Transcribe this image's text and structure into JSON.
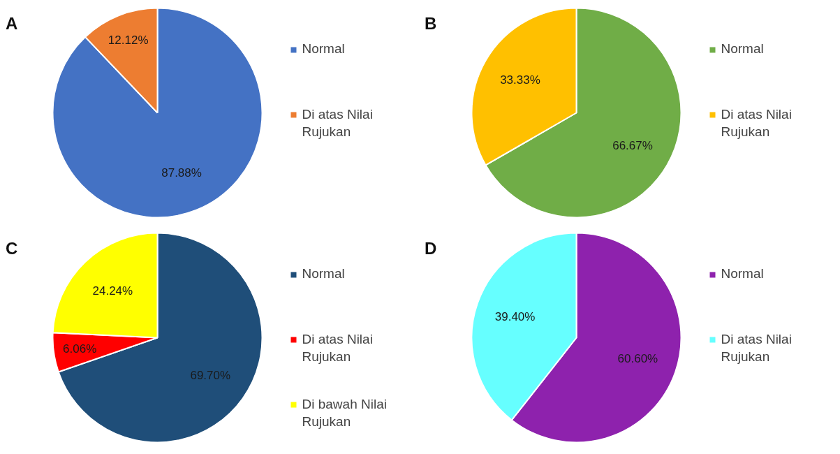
{
  "chart_data": [
    {
      "type": "pie",
      "title": "A",
      "categories": [
        "Normal",
        "Di atas Nilai Rujukan"
      ],
      "values": [
        87.88,
        12.12
      ],
      "colors": [
        "#4472c4",
        "#ed7d31"
      ],
      "value_labels": [
        "87.88%",
        "12.12%"
      ],
      "legend": "right"
    },
    {
      "type": "pie",
      "title": "B",
      "categories": [
        "Normal",
        "Di atas Nilai Rujukan"
      ],
      "values": [
        66.67,
        33.33
      ],
      "colors": [
        "#70ad47",
        "#ffc000"
      ],
      "value_labels": [
        "66.67%",
        "33.33%"
      ],
      "legend": "right"
    },
    {
      "type": "pie",
      "title": "C",
      "categories": [
        "Normal",
        "Di atas Nilai Rujukan",
        "Di bawah Nilai Rujukan"
      ],
      "values": [
        69.7,
        6.06,
        24.24
      ],
      "colors": [
        "#1f4e79",
        "#ff0000",
        "#ffff00"
      ],
      "value_labels": [
        "69.70%",
        "6.06%",
        "24.24%"
      ],
      "legend": "right"
    },
    {
      "type": "pie",
      "title": "D",
      "categories": [
        "Normal",
        "Di atas Nilai Rujukan"
      ],
      "values": [
        60.6,
        39.4
      ],
      "colors": [
        "#8e22ad",
        "#66ffff"
      ],
      "value_labels": [
        "60.60%",
        "39.40%"
      ],
      "legend": "right"
    }
  ]
}
